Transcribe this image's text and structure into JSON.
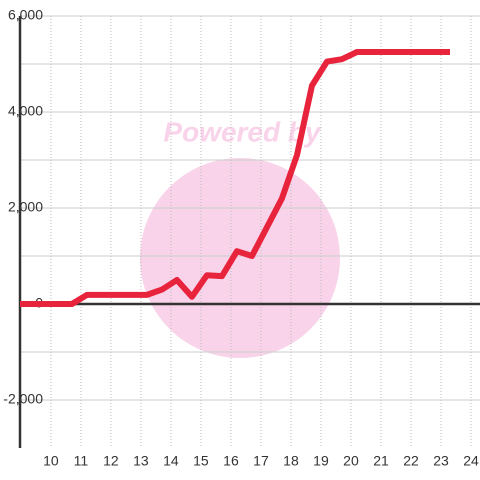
{
  "chart_data": {
    "type": "line",
    "watermark": "Powered by",
    "x": [
      8.97,
      10.7,
      11.2,
      13.2,
      13.7,
      14.2,
      14.7,
      15.2,
      15.7,
      16.2,
      16.7,
      17.2,
      17.7,
      18.2,
      18.7,
      19.2,
      19.7,
      20.2,
      23.3
    ],
    "series": [
      {
        "color": "#e8243c",
        "values": [
          0,
          0,
          190,
          190,
          300,
          500,
          150,
          600,
          580,
          1100,
          1000,
          1600,
          2200,
          3100,
          4550,
          5050,
          5100,
          5250,
          5250
        ]
      }
    ],
    "xlim": [
      8.97,
      24.3
    ],
    "xticks": [
      10,
      11,
      12,
      13,
      14,
      15,
      16,
      17,
      18,
      19,
      20,
      21,
      22,
      23,
      24
    ],
    "ylim": [
      -3000,
      6000
    ],
    "yticks": [
      {
        "value": 6000,
        "label": "6,000"
      },
      {
        "value": 4000,
        "label": "4,000"
      },
      {
        "value": 2000,
        "label": "2,000"
      },
      0,
      {
        "value": -2000,
        "label": "-2,000"
      }
    ],
    "y_minor_ticks": [
      5000,
      3000,
      1000,
      -1000
    ],
    "grid": true
  }
}
